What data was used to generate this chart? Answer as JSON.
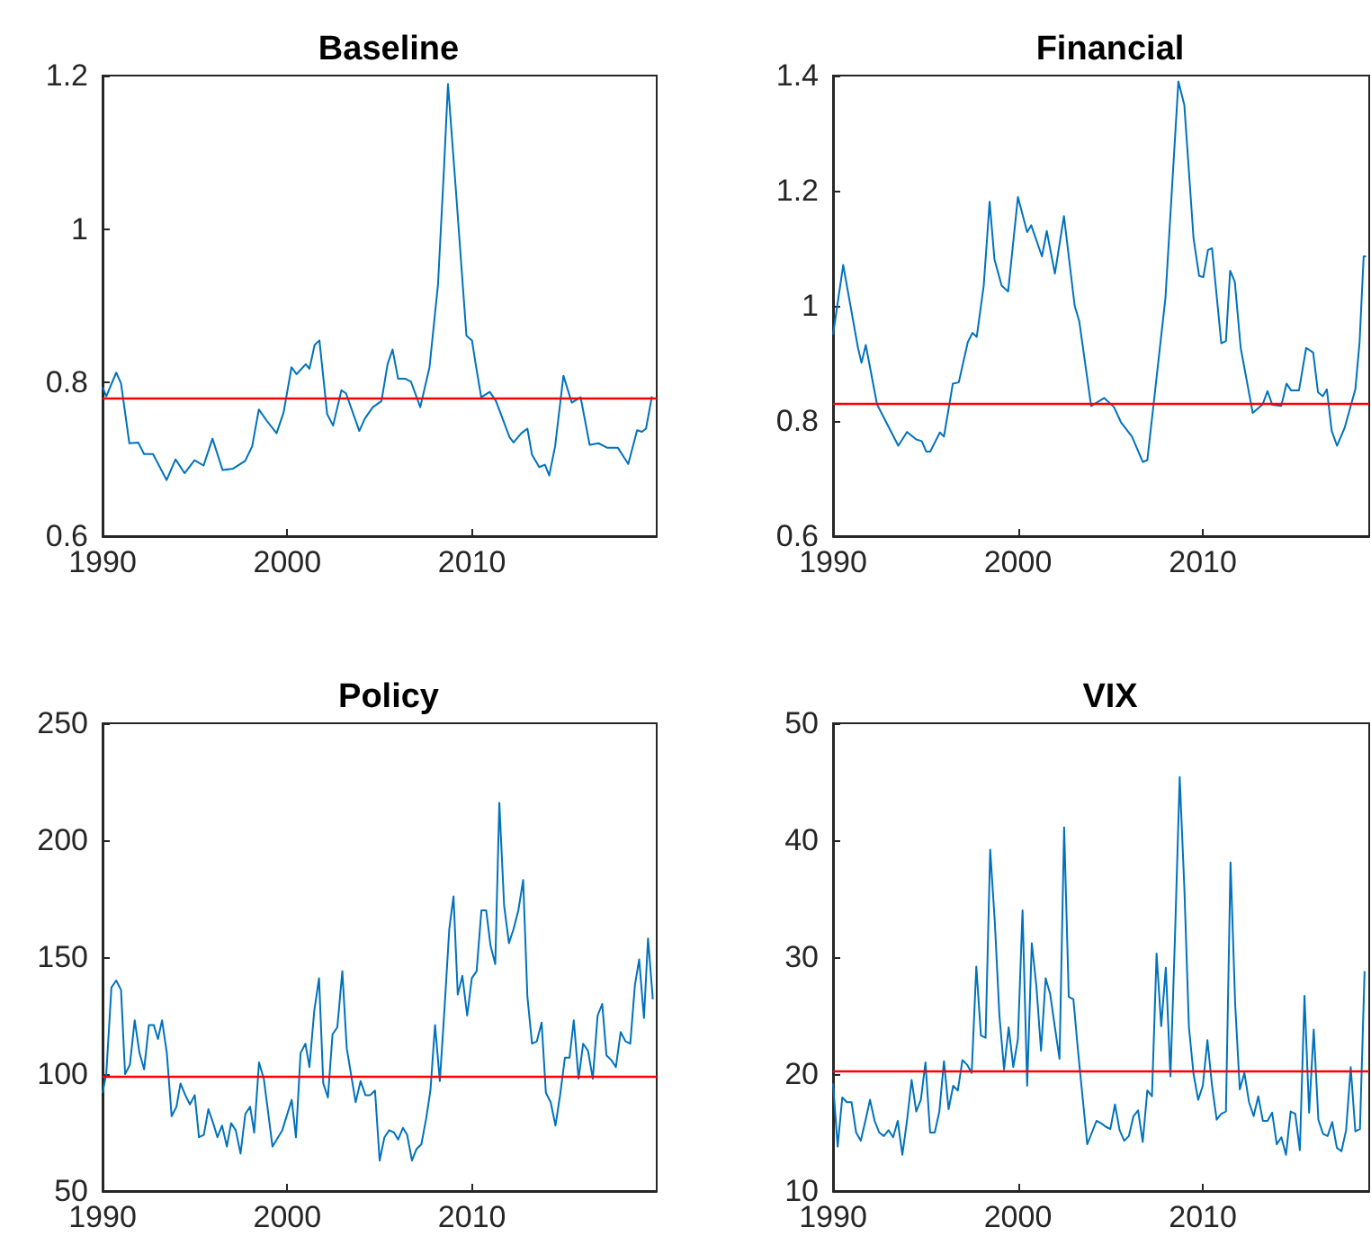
{
  "chart_data": [
    {
      "type": "line",
      "title": "Baseline",
      "color": "#0072bd",
      "xlim": [
        1990,
        2020
      ],
      "xticks": [
        1990,
        2000,
        2010
      ],
      "ylim": [
        0.6,
        1.2
      ],
      "yticks": [
        0.6,
        0.8,
        1,
        1.2
      ],
      "x": [
        1990.0,
        1990.2,
        1990.74,
        1991.0,
        1991.45,
        1991.93,
        1992.25,
        1992.73,
        1993.47,
        1993.95,
        1994.44,
        1994.98,
        1995.47,
        1995.95,
        1996.5,
        1997.07,
        1997.72,
        1998.1,
        1998.46,
        1998.9,
        1999.42,
        1999.8,
        2000.23,
        2000.5,
        2001.0,
        2001.2,
        2001.48,
        2001.74,
        2002.16,
        2002.48,
        2002.93,
        2003.18,
        2003.9,
        2004.2,
        2004.63,
        2005.1,
        2005.43,
        2005.7,
        2006.0,
        2006.4,
        2006.7,
        2007.2,
        2007.7,
        2008.16,
        2008.48,
        2008.7,
        2009.13,
        2009.7,
        2010.0,
        2010.2,
        2010.5,
        2010.96,
        2011.3,
        2012.03,
        2012.25,
        2012.67,
        2013.0,
        2013.25,
        2013.64,
        2013.95,
        2014.18,
        2014.5,
        2014.95,
        2015.4,
        2015.88,
        2016.37,
        2016.85,
        2017.33,
        2017.9,
        2018.46,
        2018.94,
        2019.2,
        2019.42,
        2019.74
      ],
      "values": [
        0.794,
        0.782,
        0.813,
        0.799,
        0.721,
        0.722,
        0.707,
        0.707,
        0.673,
        0.7,
        0.682,
        0.699,
        0.692,
        0.727,
        0.686,
        0.688,
        0.698,
        0.717,
        0.765,
        0.75,
        0.734,
        0.761,
        0.82,
        0.811,
        0.824,
        0.818,
        0.849,
        0.855,
        0.759,
        0.744,
        0.79,
        0.786,
        0.737,
        0.753,
        0.768,
        0.776,
        0.824,
        0.843,
        0.805,
        0.805,
        0.801,
        0.768,
        0.82,
        0.928,
        1.077,
        1.189,
        1.05,
        0.861,
        0.855,
        0.824,
        0.781,
        0.788,
        0.776,
        0.729,
        0.722,
        0.734,
        0.74,
        0.706,
        0.69,
        0.693,
        0.679,
        0.717,
        0.809,
        0.774,
        0.781,
        0.719,
        0.721,
        0.715,
        0.715,
        0.694,
        0.738,
        0.736,
        0.74,
        0.782
      ],
      "ref_lines": [
        {
          "axis": "y",
          "value": 0.782,
          "color": "#ff0000"
        }
      ]
    },
    {
      "type": "line",
      "title": "Financial",
      "color": "#0072bd",
      "xlim": [
        1990,
        2019
      ],
      "xticks": [
        1990,
        2000,
        2010
      ],
      "ylim": [
        0.6,
        1.4
      ],
      "yticks": [
        0.6,
        0.8,
        1,
        1.2,
        1.4
      ],
      "x": [
        1990.0,
        1990.55,
        1991.35,
        1991.54,
        1991.77,
        1992.38,
        1993.53,
        1994.0,
        1994.5,
        1994.8,
        1995.04,
        1995.26,
        1995.78,
        1996.0,
        1996.48,
        1996.8,
        1997.29,
        1997.54,
        1997.77,
        1998.15,
        1998.47,
        1998.73,
        1999.12,
        1999.47,
        2000.0,
        2000.5,
        2000.72,
        2001.3,
        2001.56,
        2002.0,
        2002.49,
        2003.07,
        2003.32,
        2003.96,
        2004.67,
        2005.2,
        2005.57,
        2006.17,
        2006.75,
        2007.0,
        2007.98,
        2008.68,
        2009.0,
        2009.5,
        2009.8,
        2010.03,
        2010.28,
        2010.5,
        2011.0,
        2011.25,
        2011.48,
        2011.73,
        2012.05,
        2012.7,
        2013.24,
        2013.5,
        2013.76,
        2014.24,
        2014.53,
        2014.78,
        2015.2,
        2015.59,
        2015.97,
        2016.23,
        2016.49,
        2016.71,
        2016.97,
        2017.26,
        2017.67,
        2018.25,
        2018.48,
        2018.7,
        2018.83
      ],
      "values": [
        0.95,
        1.071,
        0.927,
        0.901,
        0.932,
        0.829,
        0.757,
        0.781,
        0.768,
        0.765,
        0.747,
        0.747,
        0.78,
        0.773,
        0.865,
        0.867,
        0.937,
        0.953,
        0.946,
        1.035,
        1.181,
        1.081,
        1.035,
        1.025,
        1.189,
        1.128,
        1.14,
        1.086,
        1.13,
        1.056,
        1.156,
        1.0,
        0.973,
        0.826,
        0.84,
        0.824,
        0.798,
        0.773,
        0.729,
        0.732,
        1.014,
        1.39,
        1.349,
        1.117,
        1.052,
        1.05,
        1.097,
        1.1,
        0.935,
        0.939,
        1.061,
        1.042,
        0.927,
        0.814,
        0.829,
        0.852,
        0.828,
        0.826,
        0.865,
        0.853,
        0.853,
        0.927,
        0.919,
        0.85,
        0.843,
        0.855,
        0.783,
        0.757,
        0.788,
        0.855,
        0.937,
        1.086,
        1.086
      ],
      "ref_lines": [
        {
          "axis": "y",
          "value": 0.831,
          "color": "#ff0000"
        }
      ]
    },
    {
      "type": "line",
      "title": "Policy",
      "color": "#0072bd",
      "xlim": [
        1990,
        2020
      ],
      "xticks": [
        1990,
        2000,
        2010
      ],
      "ylim": [
        50,
        250
      ],
      "yticks": [
        50,
        100,
        150,
        200,
        250
      ],
      "x": [
        1990.0,
        1990.2,
        1990.48,
        1990.74,
        1991.0,
        1991.22,
        1991.48,
        1991.74,
        1992.0,
        1992.25,
        1992.51,
        1992.77,
        1993.0,
        1993.22,
        1993.48,
        1993.74,
        1994.0,
        1994.22,
        1994.48,
        1994.73,
        1994.99,
        1995.22,
        1995.48,
        1995.73,
        1995.99,
        1996.22,
        1996.47,
        1996.73,
        1996.96,
        1997.21,
        1997.47,
        1997.73,
        1997.99,
        1998.21,
        1998.47,
        1998.73,
        1999.2,
        1999.73,
        2000.24,
        2000.47,
        2000.72,
        2000.98,
        2001.2,
        2001.46,
        2001.72,
        2001.95,
        2002.2,
        2002.45,
        2002.71,
        2002.98,
        2003.22,
        2003.45,
        2003.7,
        2003.97,
        2004.23,
        2004.49,
        2004.75,
        2005.0,
        2005.26,
        2005.52,
        2005.78,
        2006.0,
        2006.26,
        2006.49,
        2006.75,
        2007.0,
        2007.26,
        2007.52,
        2007.75,
        2008.0,
        2008.26,
        2008.52,
        2008.77,
        2009.0,
        2009.23,
        2009.48,
        2009.74,
        2009.99,
        2010.25,
        2010.51,
        2010.77,
        2011.0,
        2011.26,
        2011.48,
        2011.74,
        2012.0,
        2012.25,
        2012.51,
        2012.77,
        2013.0,
        2013.25,
        2013.51,
        2013.77,
        2014.0,
        2014.26,
        2014.52,
        2014.77,
        2015.03,
        2015.28,
        2015.51,
        2015.77,
        2016.02,
        2016.28,
        2016.54,
        2016.8,
        2017.05,
        2017.28,
        2017.54,
        2017.79,
        2018.05,
        2018.31,
        2018.57,
        2018.82,
        2019.05,
        2019.31,
        2019.53,
        2019.79
      ],
      "values": [
        92,
        100,
        137,
        140,
        136,
        100,
        104,
        123,
        109,
        102,
        121,
        121,
        115,
        123,
        109,
        82,
        86,
        96,
        91,
        87,
        91,
        73,
        74,
        85,
        79,
        73,
        78,
        69,
        79,
        76,
        66,
        83,
        86,
        75,
        105,
        98,
        69,
        76,
        89,
        73,
        109,
        113,
        103,
        127,
        141,
        96,
        90,
        117,
        120,
        144,
        111,
        100,
        88,
        97,
        91,
        91,
        93,
        63,
        73,
        76,
        75,
        72,
        77,
        74,
        63,
        68,
        70,
        81,
        93,
        121,
        97,
        129,
        162,
        176,
        134,
        142,
        125,
        141,
        144,
        170,
        170,
        155,
        147,
        216,
        172,
        156,
        162,
        170,
        183,
        133,
        113,
        114,
        122,
        92,
        88,
        78,
        91,
        107,
        107,
        123,
        98,
        113,
        110,
        98,
        125,
        130,
        108,
        106,
        103,
        118,
        114,
        113,
        138,
        149,
        124,
        158,
        132
      ],
      "ref_lines": [
        {
          "axis": "y",
          "value": 99,
          "color": "#ff0000"
        }
      ]
    },
    {
      "type": "line",
      "title": "VIX",
      "color": "#0072bd",
      "xlim": [
        1990,
        2019
      ],
      "xticks": [
        1990,
        2000,
        2010
      ],
      "ylim": [
        10,
        50
      ],
      "yticks": [
        10,
        20,
        30,
        40,
        50
      ],
      "x": [
        1990.0,
        1990.25,
        1990.5,
        1990.75,
        1991.0,
        1991.25,
        1991.5,
        1991.75,
        1992.0,
        1992.25,
        1992.5,
        1992.75,
        1993.0,
        1993.25,
        1993.5,
        1993.75,
        1994.0,
        1994.25,
        1994.5,
        1994.75,
        1995.0,
        1995.25,
        1995.5,
        1995.75,
        1996.0,
        1996.25,
        1996.5,
        1996.75,
        1997.0,
        1997.25,
        1997.5,
        1997.75,
        1998.0,
        1998.25,
        1998.5,
        1998.75,
        1999.0,
        1999.25,
        1999.5,
        1999.75,
        2000.0,
        2000.25,
        2000.5,
        2000.75,
        2001.0,
        2001.25,
        2001.5,
        2001.75,
        2002.0,
        2002.25,
        2002.5,
        2002.75,
        2003.0,
        2003.25,
        2003.5,
        2003.75,
        2004.0,
        2004.25,
        2004.5,
        2004.75,
        2005.0,
        2005.25,
        2005.5,
        2005.75,
        2006.0,
        2006.25,
        2006.5,
        2006.75,
        2007.0,
        2007.25,
        2007.5,
        2007.75,
        2008.0,
        2008.25,
        2008.5,
        2008.75,
        2009.0,
        2009.25,
        2009.5,
        2009.75,
        2010.0,
        2010.25,
        2010.5,
        2010.75,
        2011.0,
        2011.25,
        2011.5,
        2011.75,
        2012.0,
        2012.25,
        2012.5,
        2012.75,
        2013.0,
        2013.25,
        2013.5,
        2013.75,
        2014.0,
        2014.25,
        2014.5,
        2014.75,
        2015.0,
        2015.25,
        2015.5,
        2015.75,
        2016.0,
        2016.25,
        2016.5,
        2016.75,
        2017.0,
        2017.25,
        2017.5,
        2017.75,
        2018.0,
        2018.25,
        2018.5,
        2018.75
      ],
      "values": [
        19.2,
        13.8,
        18,
        17.6,
        17.6,
        15,
        14.3,
        16,
        17.8,
        16,
        15,
        14.7,
        15.2,
        14.6,
        16,
        13.1,
        16,
        19.5,
        16.8,
        17.8,
        21,
        15,
        15,
        16.8,
        21.1,
        17,
        19,
        18.6,
        21.2,
        20.8,
        20.1,
        29.2,
        23.3,
        23.1,
        39.2,
        33,
        25,
        20.4,
        24,
        20.6,
        23,
        34,
        19,
        31.2,
        27.5,
        22,
        28.2,
        26.8,
        24,
        21.3,
        41.1,
        26.6,
        26.4,
        22,
        18,
        14,
        15,
        16,
        15.8,
        15.5,
        15.3,
        17.4,
        15.2,
        14.3,
        14.7,
        16.4,
        16.9,
        14.2,
        18.6,
        18.1,
        30.3,
        24.1,
        29.1,
        19.8,
        32,
        45.4,
        36,
        24,
        20,
        17.8,
        19,
        22.9,
        19,
        16.1,
        16.6,
        16.8,
        38.1,
        26,
        18.7,
        20.1,
        17.6,
        16.4,
        18.1,
        16,
        16,
        16.7,
        14,
        14.6,
        13.1,
        16.8,
        16.6,
        13.5,
        26.7,
        16.7,
        23.8,
        16.1,
        14.9,
        14.7,
        15.9,
        13.7,
        13.4,
        15.2,
        20.6,
        15.1,
        15.3,
        28.8
      ],
      "ref_lines": [
        {
          "axis": "y",
          "value": 20.3,
          "color": "#ff0000"
        }
      ]
    }
  ]
}
